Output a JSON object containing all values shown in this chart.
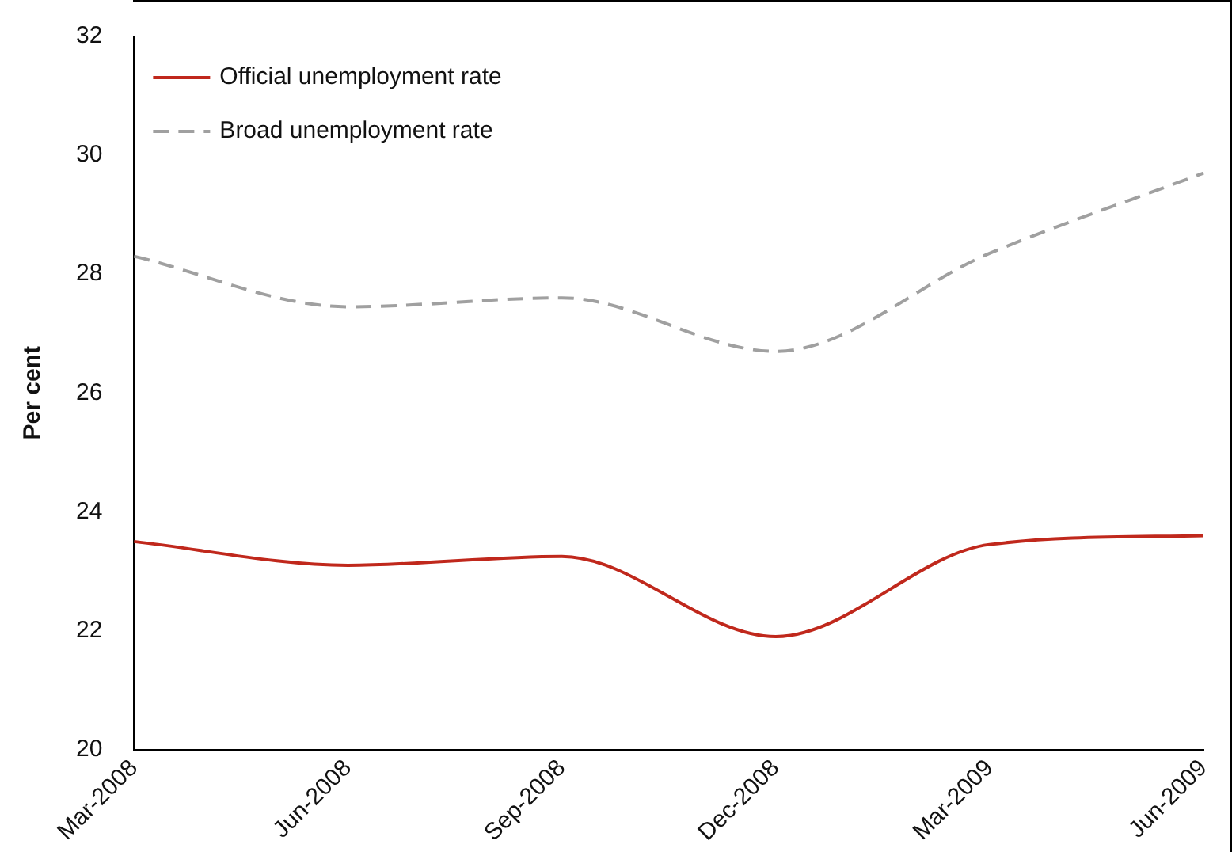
{
  "chart_data": {
    "type": "line",
    "ylabel": "Per cent",
    "categories": [
      "Mar-2008",
      "Jun-2008",
      "Sep-2008",
      "Dec-2008",
      "Mar-2009",
      "Jun-2009"
    ],
    "series": [
      {
        "name": "Official unemployment rate",
        "color": "#c0281c",
        "line_style": "solid",
        "values": [
          23.5,
          23.1,
          23.25,
          21.9,
          23.45,
          23.6
        ]
      },
      {
        "name": "Broad unemployment rate",
        "color": "#a0a0a0",
        "line_style": "dashed",
        "values": [
          28.3,
          27.45,
          27.6,
          26.7,
          28.35,
          29.7
        ]
      }
    ],
    "ylim": [
      20,
      32
    ],
    "yticks": [
      20,
      22,
      24,
      26,
      28,
      30,
      32
    ],
    "grid": false,
    "legend": "top left",
    "marker": "none"
  }
}
